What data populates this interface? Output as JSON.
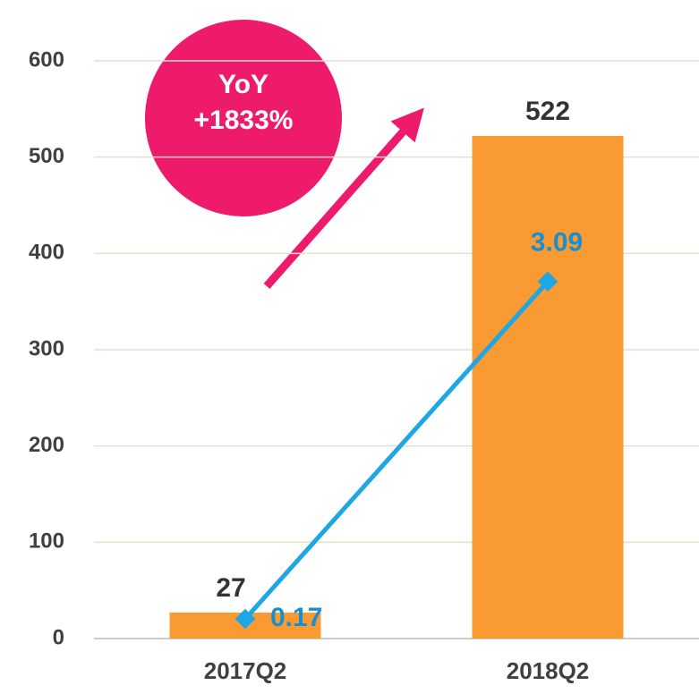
{
  "chart_data": {
    "type": "bar",
    "categories": [
      "2017Q2",
      "2018Q2"
    ],
    "series": [
      {
        "type": "bar",
        "color": "#f99a33",
        "values": [
          27,
          522
        ]
      },
      {
        "type": "line",
        "axis": "y2",
        "color": "#1ea7e4",
        "label_color": "#1a8fd0",
        "values": [
          0.17,
          3.09
        ]
      }
    ],
    "ylim": [
      0,
      600
    ],
    "yticks": [
      0,
      100,
      200,
      300,
      400,
      500,
      600
    ],
    "y2lim": [
      0,
      5
    ],
    "grid": true,
    "annotations": [
      "YoY",
      "+1833%"
    ]
  }
}
